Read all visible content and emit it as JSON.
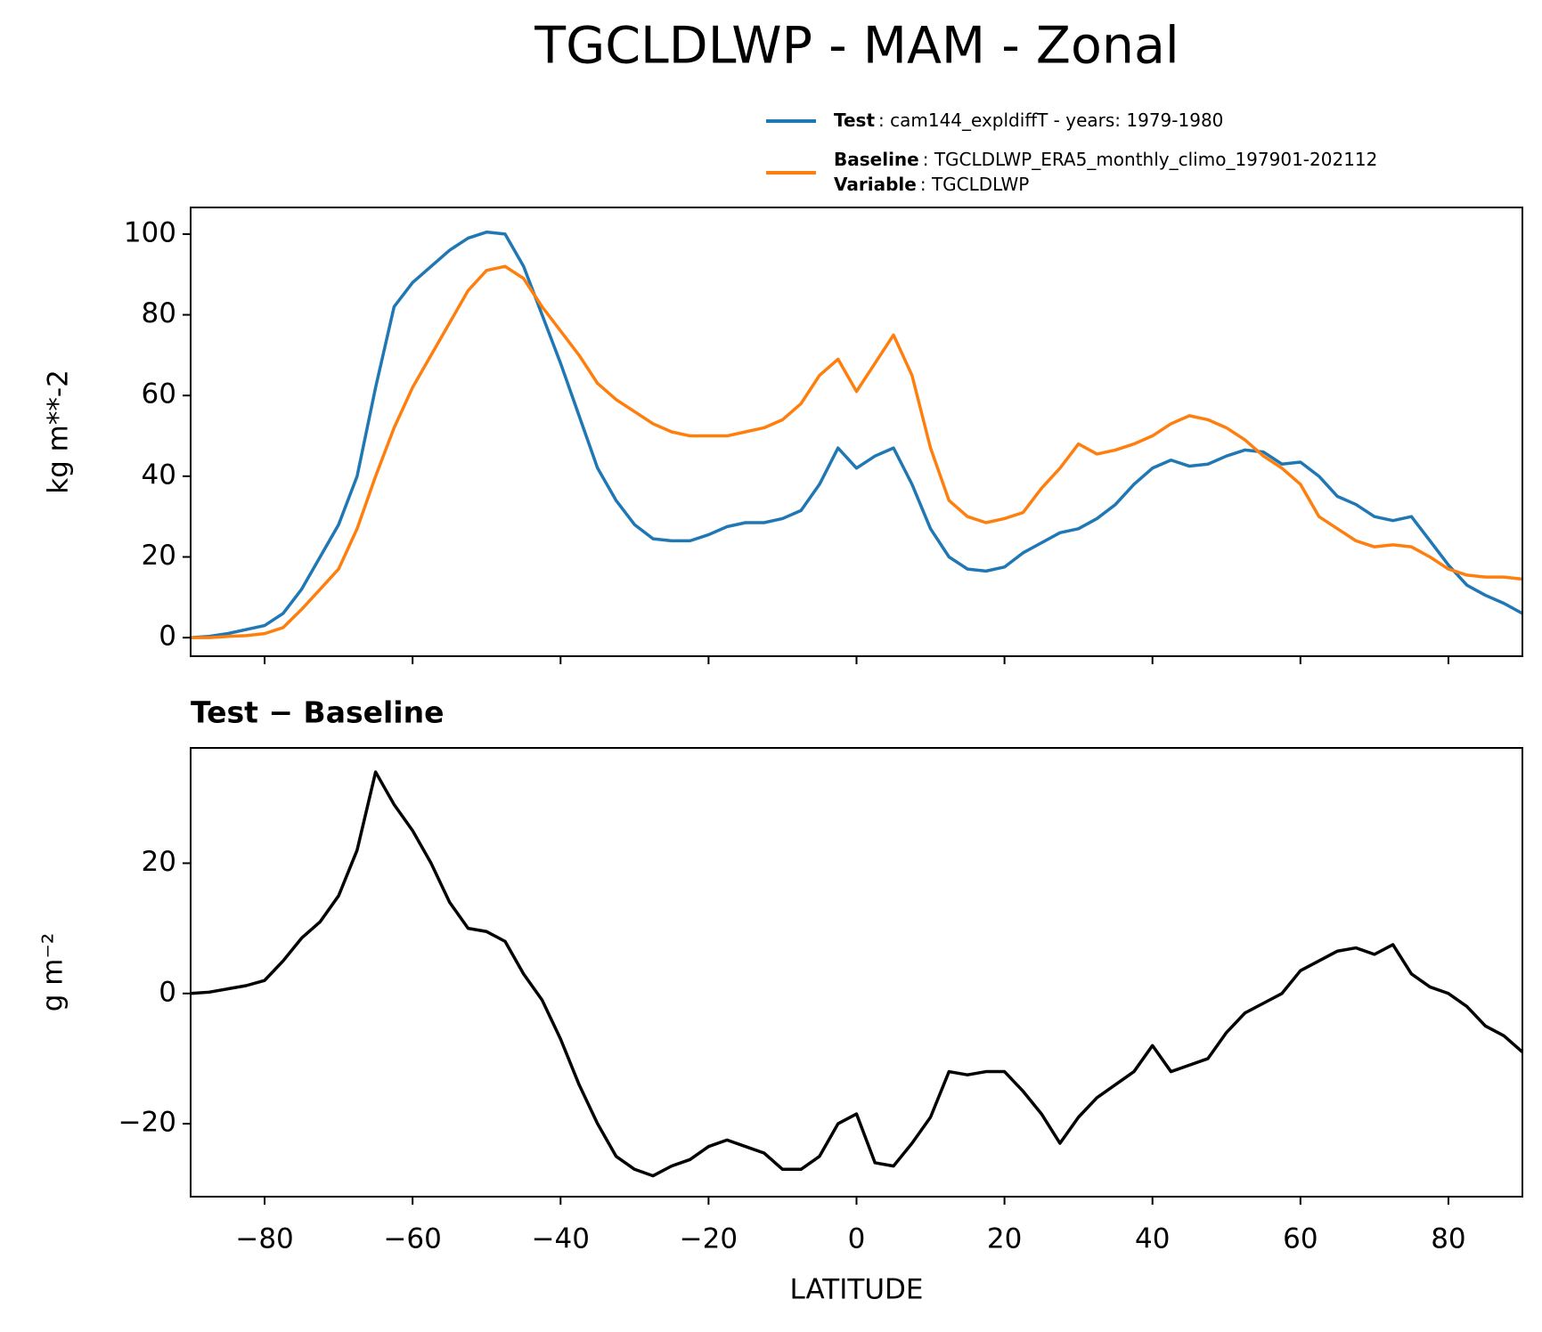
{
  "chart_data": [
    {
      "type": "line",
      "title": "TGCLDLWP - MAM - Zonal",
      "ylabel": "kg m**-2",
      "x": [
        -90,
        -87.5,
        -85,
        -82.5,
        -80,
        -77.5,
        -75,
        -72.5,
        -70,
        -67.5,
        -65,
        -62.5,
        -60,
        -57.5,
        -55,
        -52.5,
        -50,
        -47.5,
        -45,
        -42.5,
        -40,
        -37.5,
        -35,
        -32.5,
        -30,
        -27.5,
        -25,
        -22.5,
        -20,
        -17.5,
        -15,
        -12.5,
        -10,
        -7.5,
        -5,
        -2.5,
        0,
        2.5,
        5,
        7.5,
        10,
        12.5,
        15,
        17.5,
        20,
        22.5,
        25,
        27.5,
        30,
        32.5,
        35,
        37.5,
        40,
        42.5,
        45,
        47.5,
        50,
        52.5,
        55,
        57.5,
        60,
        62.5,
        65,
        67.5,
        70,
        72.5,
        75,
        77.5,
        80,
        82.5,
        85,
        87.5,
        90
      ],
      "series": [
        {
          "name": "Test",
          "description": ": cam144_expldiffT - years: 1979-1980",
          "color": "#1f77b4",
          "values": [
            0,
            0.3,
            1,
            2,
            3,
            6,
            12,
            20,
            28,
            40,
            62,
            82,
            88,
            92,
            96,
            99,
            100.5,
            100,
            92,
            80,
            68,
            55,
            42,
            34,
            28,
            24.5,
            24,
            24,
            25.5,
            27.5,
            28.5,
            28.5,
            29.5,
            31.5,
            38,
            47,
            42,
            45,
            47,
            38,
            27,
            20,
            17,
            16.5,
            17.5,
            21,
            23.5,
            26,
            27,
            29.5,
            33,
            38,
            42,
            44,
            42.5,
            43,
            45,
            46.5,
            46,
            43,
            43.5,
            40,
            35,
            33,
            30,
            29,
            30,
            24,
            18,
            13,
            10.5,
            8.5,
            6
          ]
        },
        {
          "name": "Baseline",
          "description": ": TGCLDLWP_ERA5_monthly_climo_197901-202112",
          "extra_name": "Variable",
          "extra_description": ": TGCLDLWP",
          "color": "#ff7f0e",
          "values": [
            0,
            0,
            0.3,
            0.5,
            1,
            2.5,
            7,
            12,
            17,
            27,
            40,
            52,
            62,
            70,
            78,
            86,
            91,
            92,
            89,
            82,
            76,
            70,
            63,
            59,
            56,
            53,
            51,
            50,
            50,
            50,
            51,
            52,
            54,
            58,
            65,
            69,
            61,
            68,
            75,
            65,
            47,
            34,
            30,
            28.5,
            29.5,
            31,
            37,
            42,
            48,
            45.5,
            46.5,
            48,
            50,
            53,
            55,
            54,
            52,
            49,
            45,
            42,
            38,
            30,
            27,
            24,
            22.5,
            23,
            22.5,
            20,
            17,
            15.5,
            15,
            15,
            14.5
          ]
        }
      ],
      "xlim": [
        -90,
        90
      ],
      "xticks": [
        -80,
        -60,
        -40,
        -20,
        0,
        20,
        40,
        60,
        80
      ],
      "ylim": [
        -4.6,
        106.6
      ],
      "yticks": [
        0,
        20,
        40,
        60,
        80,
        100
      ]
    },
    {
      "type": "line",
      "title": "Test − Baseline",
      "ylabel": "g m⁻²",
      "xlabel": "LATITUDE",
      "x": [
        -90,
        -87.5,
        -85,
        -82.5,
        -80,
        -77.5,
        -75,
        -72.5,
        -70,
        -67.5,
        -65,
        -62.5,
        -60,
        -57.5,
        -55,
        -52.5,
        -50,
        -47.5,
        -45,
        -42.5,
        -40,
        -37.5,
        -35,
        -32.5,
        -30,
        -27.5,
        -25,
        -22.5,
        -20,
        -17.5,
        -15,
        -12.5,
        -10,
        -7.5,
        -5,
        -2.5,
        0,
        2.5,
        5,
        7.5,
        10,
        12.5,
        15,
        17.5,
        20,
        22.5,
        25,
        27.5,
        30,
        32.5,
        35,
        37.5,
        40,
        42.5,
        45,
        47.5,
        50,
        52.5,
        55,
        57.5,
        60,
        62.5,
        65,
        67.5,
        70,
        72.5,
        75,
        77.5,
        80,
        82.5,
        85,
        87.5,
        90
      ],
      "series": [
        {
          "color": "#000000",
          "values": [
            0,
            0.2,
            0.7,
            1.2,
            2,
            5,
            8.5,
            11,
            15,
            22,
            34,
            29,
            25,
            20,
            14,
            10,
            9.5,
            8,
            3,
            -1,
            -7,
            -14,
            -20,
            -25,
            -27,
            -28,
            -26.5,
            -25.5,
            -23.5,
            -22.5,
            -23.5,
            -24.5,
            -27,
            -27,
            -25,
            -20,
            -18.5,
            -26,
            -26.5,
            -23,
            -19,
            -12,
            -12.5,
            -12,
            -12,
            -15,
            -18.5,
            -23,
            -19,
            -16,
            -14,
            -12,
            -8,
            -12,
            -11,
            -10,
            -6,
            -3,
            -1.5,
            0,
            3.5,
            5,
            6.5,
            7,
            6,
            7.5,
            3,
            1,
            0,
            -2,
            -5,
            -6.5,
            -9
          ]
        }
      ],
      "xlim": [
        -90,
        90
      ],
      "xticks": [
        {
          "value": -80,
          "label": "−80"
        },
        {
          "value": -60,
          "label": "−60"
        },
        {
          "value": -40,
          "label": "−40"
        },
        {
          "value": -20,
          "label": "−20"
        },
        0,
        20,
        40,
        60,
        80
      ],
      "ylim": [
        -31.2,
        37.7
      ],
      "yticks": [
        {
          "value": -20,
          "label": "−20"
        },
        0,
        20
      ]
    }
  ]
}
